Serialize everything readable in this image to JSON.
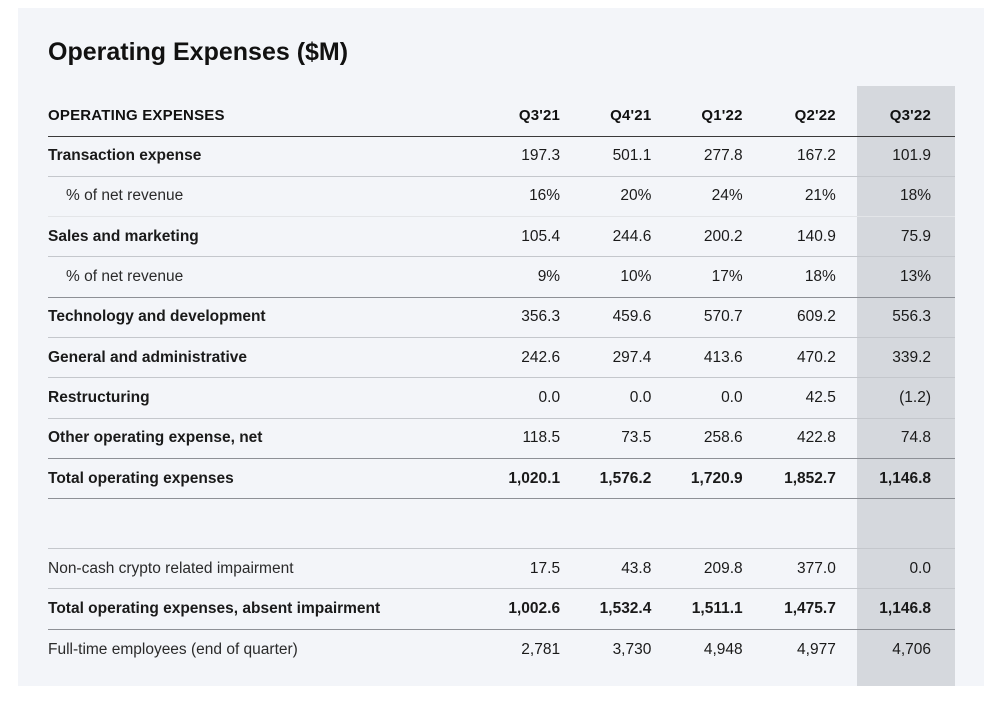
{
  "title": "Operating Expenses ($M)",
  "table": {
    "header": [
      "OPERATING EXPENSES",
      "Q3'21",
      "Q4'21",
      "Q1'22",
      "Q2'22",
      "Q3'22"
    ],
    "rows": [
      {
        "label": "Transaction expense",
        "values": [
          "197.3",
          "501.1",
          "277.8",
          "167.2",
          "101.9"
        ]
      },
      {
        "label": "% of net revenue",
        "values": [
          "16%",
          "20%",
          "24%",
          "21%",
          "18%"
        ]
      },
      {
        "label": "Sales and marketing",
        "values": [
          "105.4",
          "244.6",
          "200.2",
          "140.9",
          "75.9"
        ]
      },
      {
        "label": "% of net revenue",
        "values": [
          "9%",
          "10%",
          "17%",
          "18%",
          "13%"
        ]
      },
      {
        "label": "Technology and development",
        "values": [
          "356.3",
          "459.6",
          "570.7",
          "609.2",
          "556.3"
        ]
      },
      {
        "label": "General and administrative",
        "values": [
          "242.6",
          "297.4",
          "413.6",
          "470.2",
          "339.2"
        ]
      },
      {
        "label": "Restructuring",
        "values": [
          "0.0",
          "0.0",
          "0.0",
          "42.5",
          "(1.2)"
        ]
      },
      {
        "label": "Other operating expense, net",
        "values": [
          "118.5",
          "73.5",
          "258.6",
          "422.8",
          "74.8"
        ]
      },
      {
        "label": "Total operating expenses",
        "values": [
          "1,020.1",
          "1,576.2",
          "1,720.9",
          "1,852.7",
          "1,146.8"
        ]
      },
      {
        "label": "Non-cash crypto related impairment",
        "values": [
          "17.5",
          "43.8",
          "209.8",
          "377.0",
          "0.0"
        ]
      },
      {
        "label": "Total operating expenses, absent impairment",
        "values": [
          "1,002.6",
          "1,532.4",
          "1,511.1",
          "1,475.7",
          "1,146.8"
        ]
      },
      {
        "label": "Full-time employees (end of quarter)",
        "values": [
          "2,781",
          "3,730",
          "4,948",
          "4,977",
          "4,706"
        ]
      }
    ]
  }
}
